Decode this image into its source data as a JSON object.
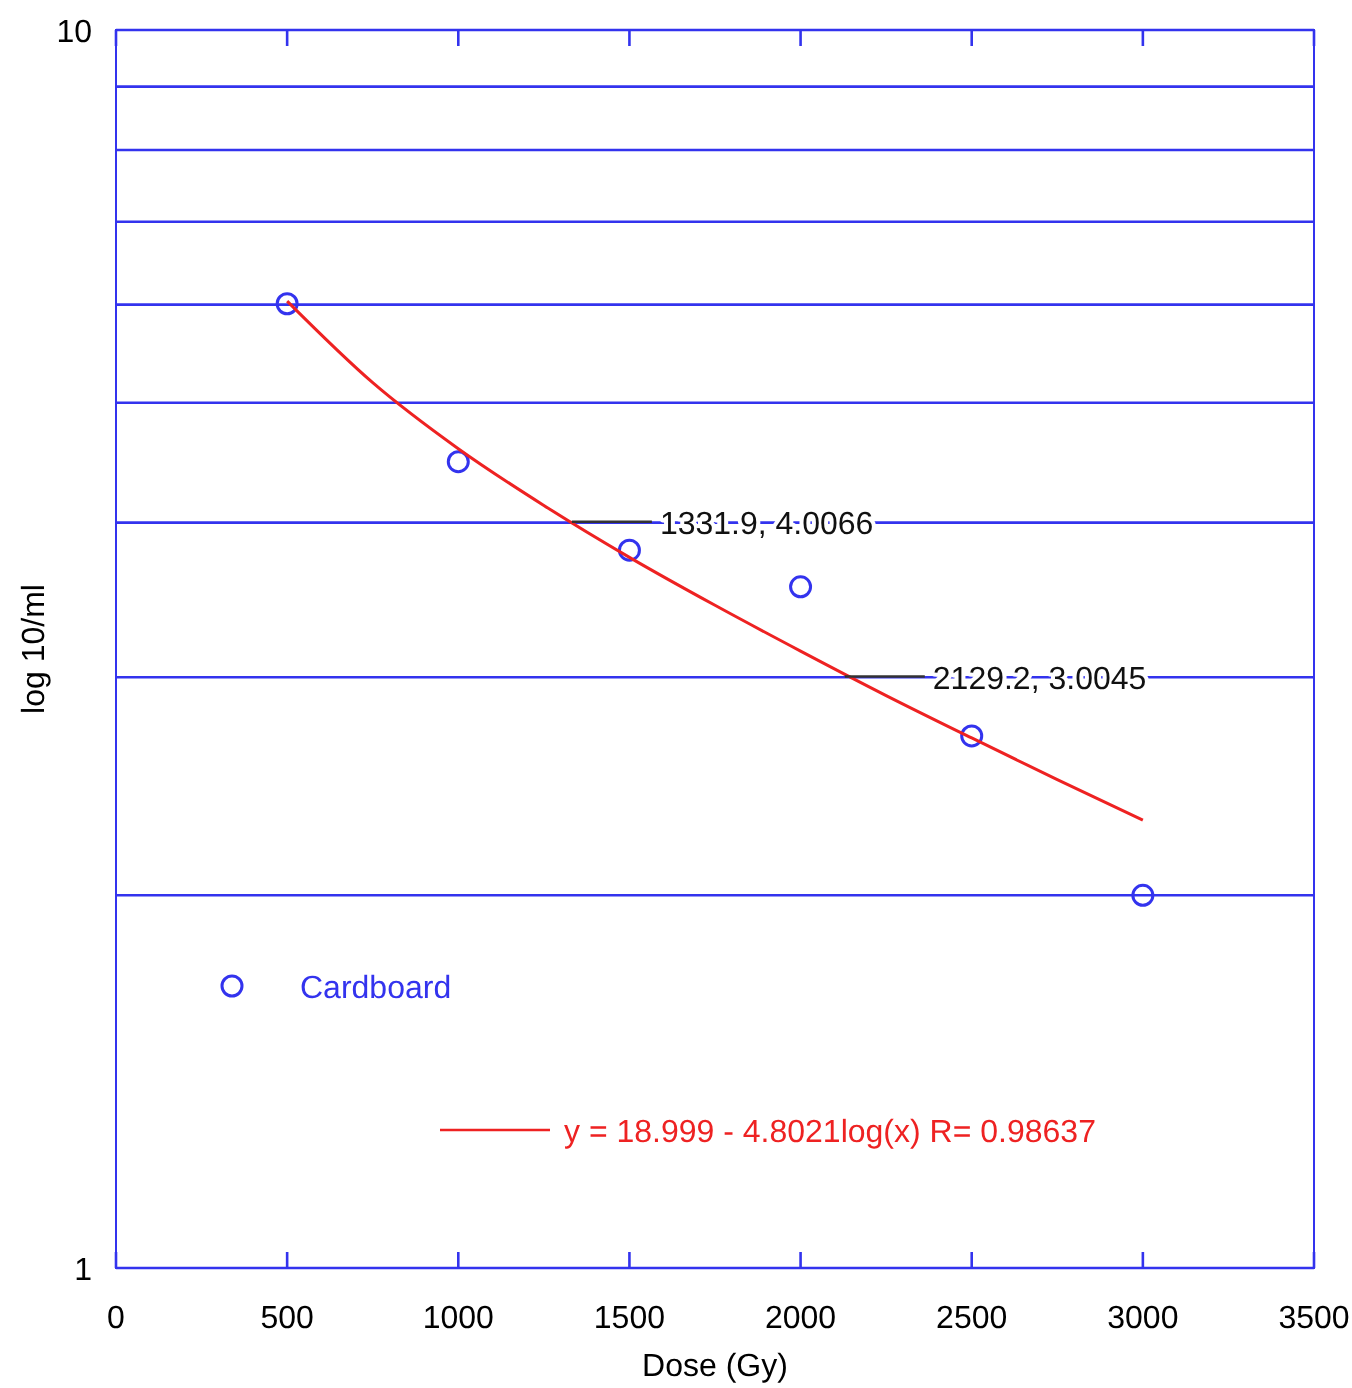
{
  "chart_data": {
    "type": "scatter",
    "xlabel": "Dose (Gy)",
    "ylabel": "log 10/ml",
    "x": [
      500,
      1000,
      1500,
      2000,
      2500,
      3000
    ],
    "series": [
      {
        "name": "Cardboard",
        "color": "#3333ee",
        "marker": "circle",
        "values": [
          6.01,
          4.48,
          3.8,
          3.55,
          2.69,
          2.0
        ]
      },
      {
        "name": "y = 18.999 - 4.8021log(x)   R= 0.98637",
        "type": "line",
        "color": "#ee2222",
        "marker": "none",
        "x": [
          500,
          750,
          1000,
          1250,
          1500,
          1750,
          2000,
          2250,
          2500,
          2750,
          3000
        ],
        "values": [
          6.04,
          5.19,
          4.59,
          4.13,
          3.75,
          3.43,
          3.15,
          2.9,
          2.68,
          2.48,
          2.3
        ]
      }
    ],
    "xlim": [
      0,
      3500
    ],
    "xticks": [
      0,
      500,
      1000,
      1500,
      2000,
      2500,
      3000,
      3500
    ],
    "ylim": [
      1,
      10
    ],
    "yticks": [
      1,
      {
        "value": 2,
        "label": null
      },
      {
        "value": 3,
        "label": null
      },
      {
        "value": 4,
        "label": null
      },
      {
        "value": 5,
        "label": null
      },
      {
        "value": 6,
        "label": null
      },
      {
        "value": 7,
        "label": null
      },
      {
        "value": 8,
        "label": null
      },
      {
        "value": 9,
        "label": null
      },
      10
    ],
    "log": "y",
    "grid": "y",
    "legend": "bottom left",
    "annotations": [
      {
        "text": "1331.9, 4.0066",
        "x": 1331.9,
        "y": 4.0066
      },
      {
        "text": "2129.2, 3.0045",
        "x": 2129.2,
        "y": 3.0045
      }
    ]
  }
}
